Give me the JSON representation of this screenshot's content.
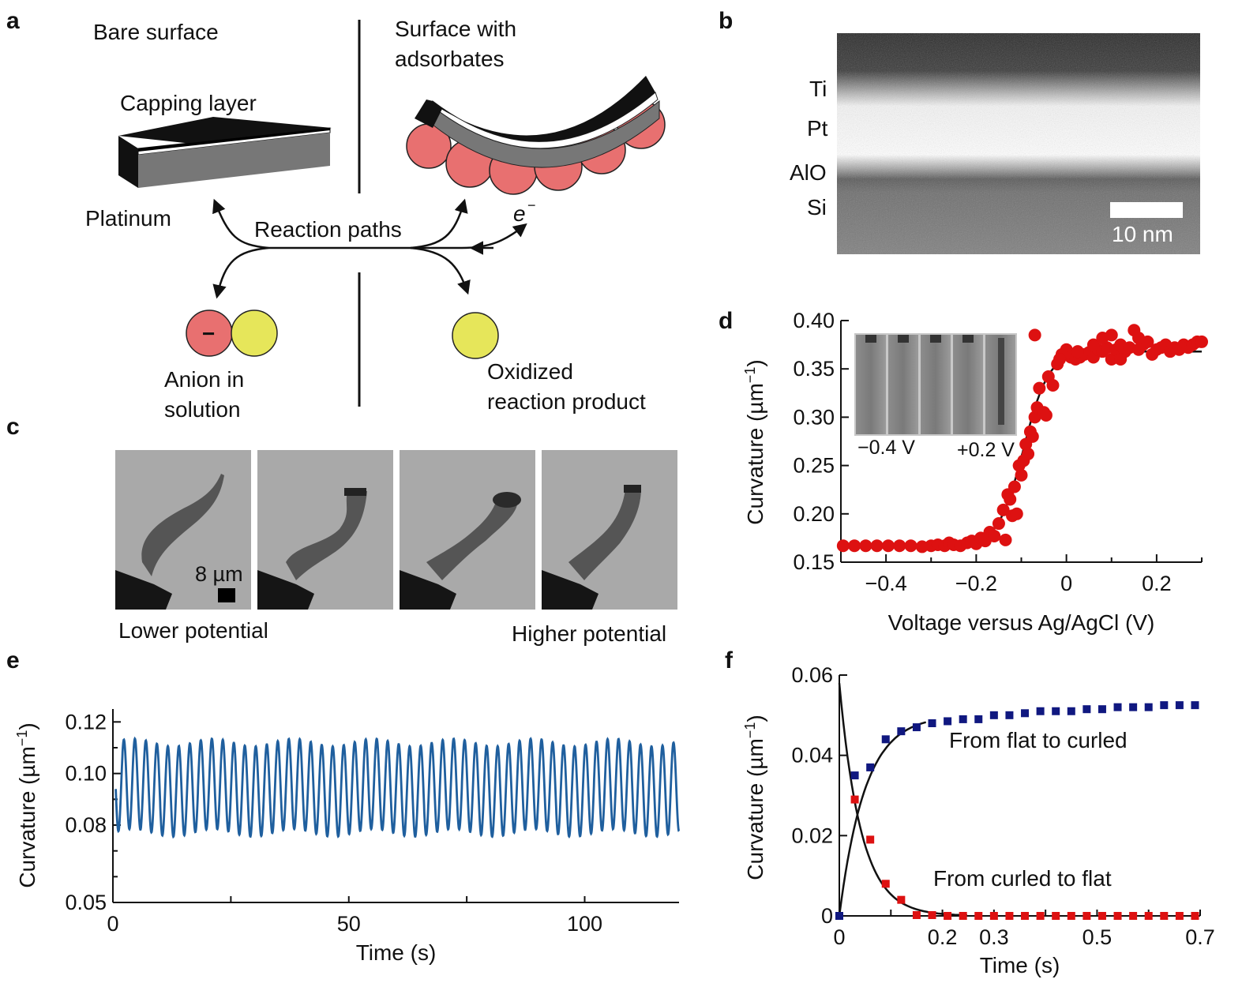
{
  "panels": {
    "a": {
      "label": "a",
      "bare_title": "Bare surface",
      "ads_title_1": "Surface with",
      "ads_title_2": "adsorbates",
      "capping": "Capping layer",
      "platinum": "Platinum",
      "reaction": "Reaction paths",
      "electron": "e",
      "electron_sup": "−",
      "anion_sign": "−",
      "anion_1": "Anion in",
      "anion_2": "solution",
      "oxidized_1": "Oxidized",
      "oxidized_2": "reaction product",
      "colors": {
        "red": "#e87070",
        "yellow": "#e6e65a"
      }
    },
    "b": {
      "label": "b",
      "layers": [
        "Ti",
        "Pt",
        "AlO",
        "Si"
      ],
      "scale": "10 nm"
    },
    "c": {
      "label": "c",
      "scale": "8 µm",
      "lower": "Lower potential",
      "higher": "Higher potential"
    },
    "d": {
      "label": "d",
      "inset_left": "−0.4 V",
      "inset_right": "+0.2 V"
    },
    "e": {
      "label": "e"
    },
    "f": {
      "label": "f",
      "flat_to_curled": "From flat to curled",
      "curled_to_flat": "From curled to flat"
    }
  },
  "chart_data": [
    {
      "panel": "d",
      "type": "scatter",
      "xlabel": "Voltage versus Ag/AgCl (V)",
      "ylabel": "Curvature (µm−1)",
      "ylabel_main": "Curvature (µm",
      "ylabel_sup": "−1",
      "ylabel_close": ")",
      "xlim": [
        -0.5,
        0.3
      ],
      "ylim": [
        0.15,
        0.4
      ],
      "xticks": [
        -0.4,
        -0.2,
        0,
        0.2
      ],
      "xtick_labels": [
        "−0.4",
        "−0.2",
        "0",
        "0.2"
      ],
      "yticks": [
        0.15,
        0.2,
        0.25,
        0.3,
        0.35,
        0.4
      ],
      "ytick_labels": [
        "0.15",
        "0.20",
        "0.25",
        "0.30",
        "0.35",
        "0.40"
      ],
      "fit": {
        "type": "sigmoid",
        "low": 0.167,
        "high": 0.368,
        "center": -0.095,
        "width": 0.028
      },
      "color": "#dd1111",
      "points": [
        [
          -0.495,
          0.167
        ],
        [
          -0.47,
          0.167
        ],
        [
          -0.445,
          0.167
        ],
        [
          -0.42,
          0.167
        ],
        [
          -0.395,
          0.167
        ],
        [
          -0.37,
          0.167
        ],
        [
          -0.345,
          0.167
        ],
        [
          -0.32,
          0.166
        ],
        [
          -0.3,
          0.167
        ],
        [
          -0.285,
          0.168
        ],
        [
          -0.27,
          0.167
        ],
        [
          -0.26,
          0.17
        ],
        [
          -0.25,
          0.168
        ],
        [
          -0.235,
          0.167
        ],
        [
          -0.22,
          0.17
        ],
        [
          -0.21,
          0.172
        ],
        [
          -0.2,
          0.169
        ],
        [
          -0.19,
          0.175
        ],
        [
          -0.18,
          0.172
        ],
        [
          -0.17,
          0.181
        ],
        [
          -0.16,
          0.177
        ],
        [
          -0.15,
          0.19
        ],
        [
          -0.14,
          0.204
        ],
        [
          -0.135,
          0.173
        ],
        [
          -0.13,
          0.22
        ],
        [
          -0.125,
          0.215
        ],
        [
          -0.12,
          0.198
        ],
        [
          -0.115,
          0.228
        ],
        [
          -0.11,
          0.2
        ],
        [
          -0.105,
          0.25
        ],
        [
          -0.1,
          0.24
        ],
        [
          -0.095,
          0.255
        ],
        [
          -0.09,
          0.272
        ],
        [
          -0.085,
          0.262
        ],
        [
          -0.08,
          0.285
        ],
        [
          -0.075,
          0.28
        ],
        [
          -0.07,
          0.3
        ],
        [
          -0.065,
          0.31
        ],
        [
          -0.06,
          0.33
        ],
        [
          -0.05,
          0.305
        ],
        [
          -0.045,
          0.302
        ],
        [
          -0.07,
          0.385
        ],
        [
          -0.04,
          0.342
        ],
        [
          -0.03,
          0.333
        ],
        [
          -0.02,
          0.355
        ],
        [
          -0.01,
          0.365
        ],
        [
          0.0,
          0.37
        ],
        [
          0.01,
          0.362
        ],
        [
          0.02,
          0.36
        ],
        [
          0.03,
          0.362
        ],
        [
          0.04,
          0.365
        ],
        [
          0.05,
          0.367
        ],
        [
          0.06,
          0.362
        ],
        [
          0.07,
          0.37
        ],
        [
          0.08,
          0.368
        ],
        [
          0.09,
          0.372
        ],
        [
          0.1,
          0.36
        ],
        [
          0.11,
          0.37
        ],
        [
          0.12,
          0.375
        ],
        [
          0.13,
          0.368
        ],
        [
          0.14,
          0.372
        ],
        [
          0.15,
          0.39
        ],
        [
          0.16,
          0.37
        ],
        [
          0.17,
          0.375
        ],
        [
          0.18,
          0.378
        ],
        [
          0.19,
          0.365
        ],
        [
          0.2,
          0.37
        ],
        [
          0.21,
          0.372
        ],
        [
          0.22,
          0.375
        ],
        [
          0.23,
          0.368
        ],
        [
          0.24,
          0.372
        ],
        [
          0.25,
          0.37
        ],
        [
          0.26,
          0.375
        ],
        [
          0.27,
          0.372
        ],
        [
          0.28,
          0.375
        ],
        [
          0.29,
          0.378
        ],
        [
          0.3,
          0.378
        ],
        [
          0.06,
          0.375
        ],
        [
          0.12,
          0.36
        ],
        [
          0.08,
          0.382
        ],
        [
          0.1,
          0.385
        ],
        [
          0.025,
          0.368
        ],
        [
          -0.015,
          0.36
        ],
        [
          0.16,
          0.382
        ]
      ]
    },
    {
      "panel": "e",
      "type": "line",
      "xlabel": "Time (s)",
      "ylabel": "Curvature (µm−1)",
      "ylabel_main": "Curvature (µm",
      "ylabel_sup": "−1",
      "ylabel_close": ")",
      "xlim": [
        0,
        120
      ],
      "ylim": [
        0.05,
        0.125
      ],
      "xticks": [
        0,
        50,
        100
      ],
      "xtick_labels": [
        "0",
        "50",
        "100"
      ],
      "yticks": [
        0.05,
        0.08,
        0.1,
        0.12
      ],
      "ytick_labels": [
        "0.05",
        "0.08",
        "0.10",
        "0.12"
      ],
      "signal": {
        "period_s": 2.33,
        "max": 0.112,
        "min": 0.077,
        "t_end": 120
      },
      "color": "#1f5f9e"
    },
    {
      "panel": "f",
      "type": "scatter",
      "xlabel": "Time (s)",
      "ylabel": "Curvature (µm−1)",
      "ylabel_main": "Curvature (µm",
      "ylabel_sup": "−1",
      "ylabel_close": ")",
      "xlim": [
        0,
        0.7
      ],
      "ylim": [
        0,
        0.06
      ],
      "xticks": [
        0,
        0.1,
        0.2,
        0.3,
        0.4,
        0.5,
        0.6,
        0.7
      ],
      "xtick_labels": [
        "0",
        "",
        "0.2",
        "0.3",
        "",
        "0.5",
        "",
        "0.7"
      ],
      "yticks": [
        0,
        0.02,
        0.04,
        0.06
      ],
      "ytick_labels": [
        "0",
        "0.02",
        "0.04",
        "0.06"
      ],
      "series": [
        {
          "name": "From flat to curled",
          "color": "#101880",
          "x": [
            0,
            0.03,
            0.06,
            0.09,
            0.12,
            0.15,
            0.18,
            0.21,
            0.24,
            0.27,
            0.3,
            0.33,
            0.36,
            0.39,
            0.42,
            0.45,
            0.48,
            0.51,
            0.54,
            0.57,
            0.6,
            0.63,
            0.66,
            0.69
          ],
          "y": [
            0,
            0.035,
            0.037,
            0.044,
            0.046,
            0.047,
            0.048,
            0.0485,
            0.049,
            0.049,
            0.05,
            0.05,
            0.0505,
            0.051,
            0.051,
            0.051,
            0.0515,
            0.0515,
            0.052,
            0.052,
            0.052,
            0.0525,
            0.0525,
            0.0525
          ],
          "fit": {
            "type": "rise",
            "amplitude": 0.05,
            "tau": 0.05,
            "t_end": 0.17
          }
        },
        {
          "name": "From curled to flat",
          "color": "#dd1111",
          "x": [
            0.03,
            0.06,
            0.09,
            0.12,
            0.15,
            0.18,
            0.21,
            0.24,
            0.27,
            0.3,
            0.33,
            0.36,
            0.39,
            0.42,
            0.45,
            0.48,
            0.51,
            0.54,
            0.57,
            0.6,
            0.63,
            0.66,
            0.69
          ],
          "y": [
            0.029,
            0.019,
            0.008,
            0.004,
            0.0002,
            0.0002,
            0,
            0,
            0,
            0,
            0,
            0,
            0,
            0,
            0,
            0,
            0,
            0,
            0,
            0,
            0,
            0,
            0
          ],
          "fit": {
            "type": "decay",
            "amplitude": 0.058,
            "tau": 0.042,
            "t_end": 0.25
          }
        }
      ]
    }
  ]
}
